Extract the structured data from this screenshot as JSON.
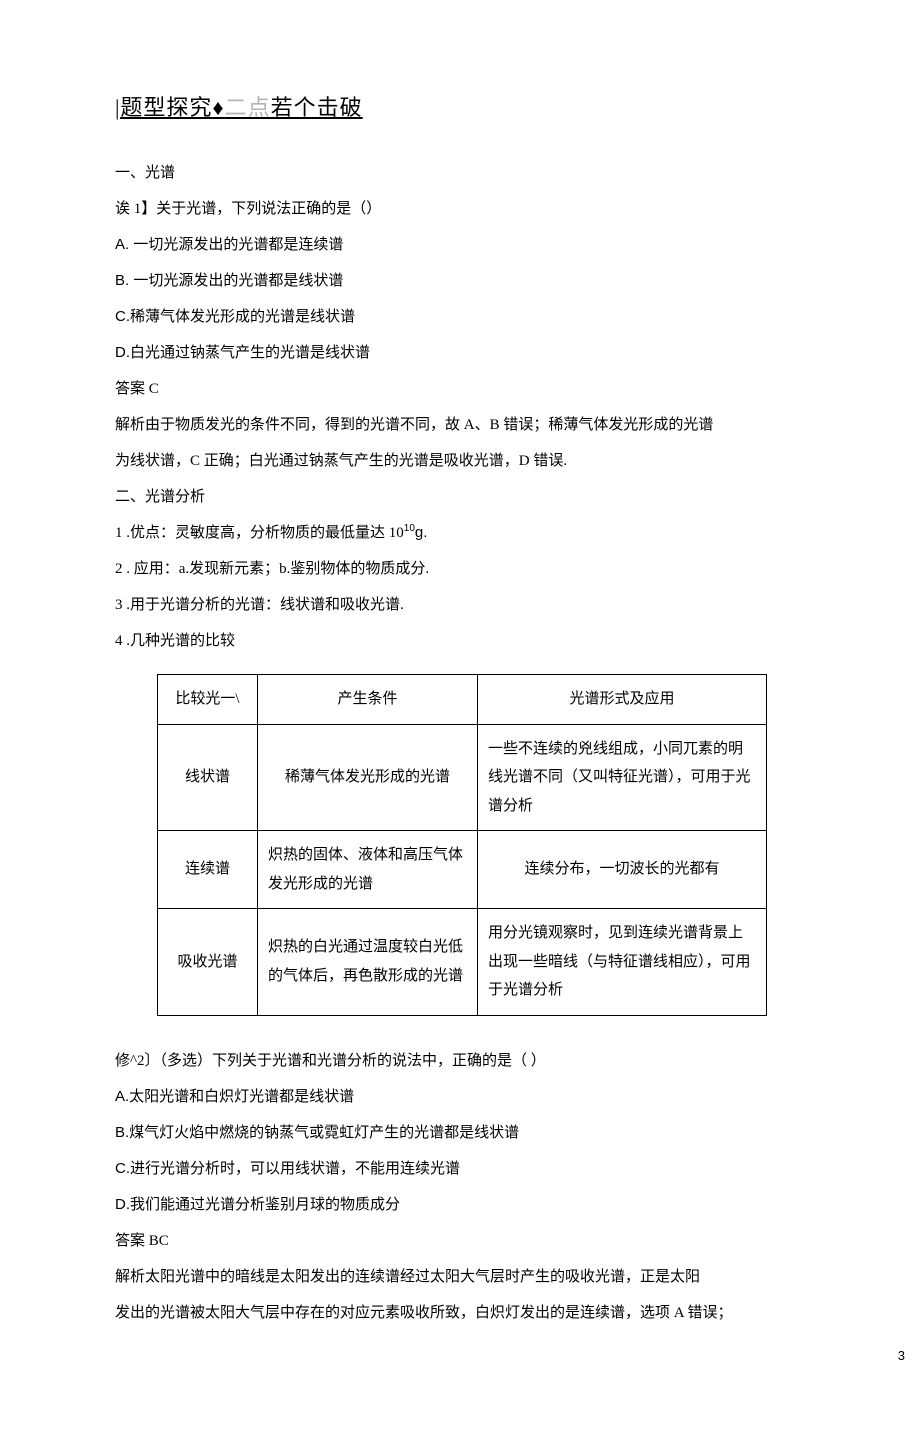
{
  "title": {
    "prefix_bar": "|",
    "main1": "题型探究",
    "diamond": "♦",
    "gray": "二点",
    "main2": "若个击破"
  },
  "section1_heading": "一、光谱",
  "q1_stem": "诶 1】关于光谱，下列说法正确的是（）",
  "q1_A": "A.   一切光源发出的光谱都是连续谱",
  "q1_B": "B.   一切光源发出的光谱都是线状谱",
  "q1_C": "C.稀薄气体发光形成的光谱是线状谱",
  "q1_D": "D.白光通过钠蒸气产生的光谱是线状谱",
  "q1_ans": "答案 C",
  "q1_exp1": "解析由于物质发光的条件不同，得到的光谱不同，故 A、B 错误；稀薄气体发光形成的光谱",
  "q1_exp2": "为线状谱，C 正确；白光通过钠蒸气产生的光谱是吸收光谱，D 错误.",
  "section2_heading": "二、光谱分析",
  "pt1_pre": "1 .优点：灵敏度高，分析物质的最低量达 10",
  "pt1_sup": "10",
  "pt1_post": "g.",
  "pt2": "2 . 应用：a.发现新元素；b.鉴别物体的物质成分.",
  "pt3": "3 .用于光谱分析的光谱：线状谱和吸收光谱.",
  "pt4": "4 .几种光谱的比较",
  "table": {
    "h1": "比较光一\\",
    "h2": "产生条件",
    "h3": "光谱形式及应用",
    "r1c1": "线状谱",
    "r1c2": "稀薄气体发光形成的光谱",
    "r1c3": "一些不连续的兇线组成，小同兀素的明线光谱不同（又叫特征光谱），可用于光谱分析",
    "r2c1": "连续谱",
    "r2c2": "炽热的固体、液体和高压气体发光形成的光谱",
    "r2c3": "连续分布，一切波长的光都有",
    "r3c1": "吸收光谱",
    "r3c2": "炽热的白光通过温度较白光低的气体后，再色散形成的光谱",
    "r3c3": "用分光镜观察时，见到连续光谱背景上出现一些暗线（与特征谱线相应），可用于光谱分析"
  },
  "q2_stem": "修^2〕（多选）下列关于光谱和光谱分析的说法中，正确的是（ ）",
  "q2_A": "A.太阳光谱和白炽灯光谱都是线状谱",
  "q2_B": "B.煤气灯火焰中燃烧的钠蒸气或霓虹灯产生的光谱都是线状谱",
  "q2_C": "C.进行光谱分析时，可以用线状谱，不能用连续光谱",
  "q2_D": "D.我们能通过光谱分析鉴别月球的物质成分",
  "q2_ans": "答案 BC",
  "q2_exp1": "解析太阳光谱中的暗线是太阳发出的连续谱经过太阳大气层时产生的吸收光谱，正是太阳",
  "q2_exp2": "发出的光谱被太阳大气层中存在的对应元素吸收所致，白炽灯发出的是连续谱，选项 A 错误；",
  "page_number": "3"
}
